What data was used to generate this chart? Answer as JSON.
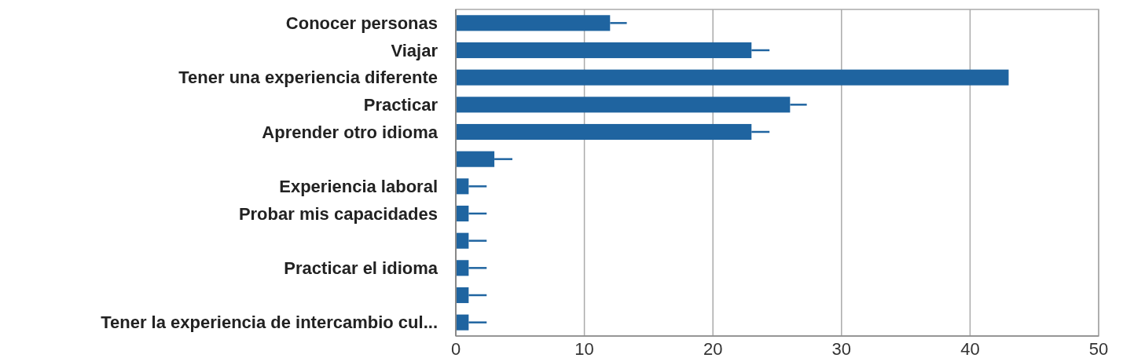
{
  "chart_data": {
    "type": "bar",
    "orientation": "horizontal",
    "categories": [
      "Conocer personas",
      "Viajar",
      "Tener una experiencia diferente",
      "Practicar",
      "Aprender otro idioma",
      null,
      "Experiencia laboral",
      "Probar mis capacidades",
      null,
      "Practicar el idioma",
      null,
      "Tener la experiencia de intercambio cul..."
    ],
    "values": [
      12,
      23,
      43,
      26,
      23,
      3,
      1,
      1,
      1,
      1,
      1,
      1
    ],
    "errors": [
      [
        12,
        13.3
      ],
      [
        23,
        24.4
      ],
      null,
      [
        26,
        27.3
      ],
      [
        23,
        24.4
      ],
      [
        3,
        4.4
      ],
      [
        1,
        2.4
      ],
      [
        1,
        2.4
      ],
      [
        1,
        2.4
      ],
      [
        1,
        2.4
      ],
      [
        1,
        2.4
      ],
      [
        1,
        2.4
      ]
    ],
    "color": "#1f64a0",
    "xlim": [
      0,
      50
    ],
    "xticks": [
      0,
      10,
      20,
      30,
      40,
      50
    ],
    "grid": "x"
  }
}
